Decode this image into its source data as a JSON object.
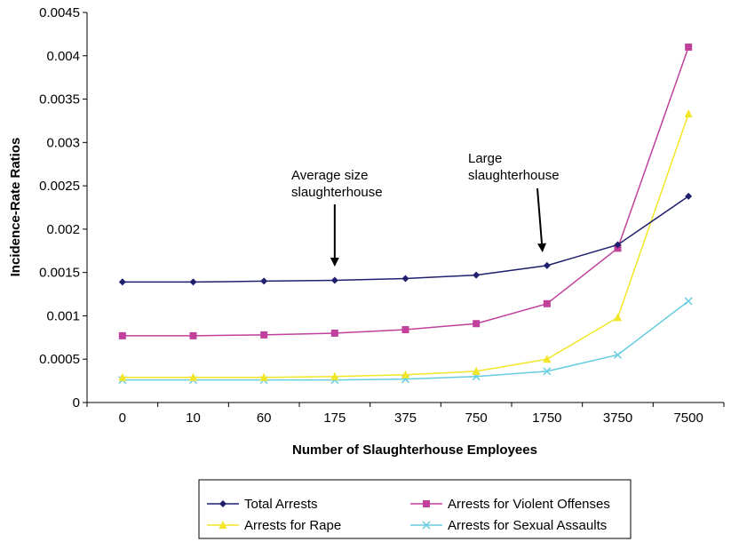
{
  "chart_data": {
    "type": "line",
    "categories": [
      "0",
      "10",
      "60",
      "175",
      "375",
      "750",
      "1750",
      "3750",
      "7500"
    ],
    "xlabel": "Number of Slaughterhouse Employees",
    "ylabel": "Incidence-Rate Ratios",
    "ylim": [
      0,
      0.0045
    ],
    "yticks": [
      "0",
      "0.0005",
      "0.001",
      "0.0015",
      "0.002",
      "0.0025",
      "0.003",
      "0.0035",
      "0.004",
      "0.0045"
    ],
    "grid": false,
    "legend_position": "bottom",
    "series": [
      {
        "name": "Total Arrests",
        "color": "#1F1F6E",
        "marker": "diamond",
        "values": [
          0.00139,
          0.00139,
          0.0014,
          0.00141,
          0.00143,
          0.00147,
          0.00158,
          0.00182,
          0.00238
        ]
      },
      {
        "name": "Arrests for Violent Offenses",
        "color": "#C0409C",
        "marker": "square",
        "values": [
          0.00077,
          0.00077,
          0.00078,
          0.0008,
          0.00084,
          0.00091,
          0.00114,
          0.00178,
          0.0041
        ]
      },
      {
        "name": "Arrests for Rape",
        "color": "#F2E626",
        "marker": "triangle",
        "values": [
          0.00029,
          0.00029,
          0.00029,
          0.0003,
          0.00032,
          0.00036,
          0.0005,
          0.00098,
          0.00333
        ]
      },
      {
        "name": "Arrests for Sexual Assaults",
        "color": "#66CCE0",
        "marker": "x",
        "values": [
          0.00026,
          0.00026,
          0.00026,
          0.00026,
          0.00027,
          0.0003,
          0.00036,
          0.00055,
          0.00117
        ]
      }
    ],
    "annotations": [
      {
        "lines": [
          "Average size",
          "slaughterhouse"
        ],
        "category": "175"
      },
      {
        "lines": [
          "Large",
          "slaughterhouse"
        ],
        "category": "1750"
      }
    ]
  }
}
